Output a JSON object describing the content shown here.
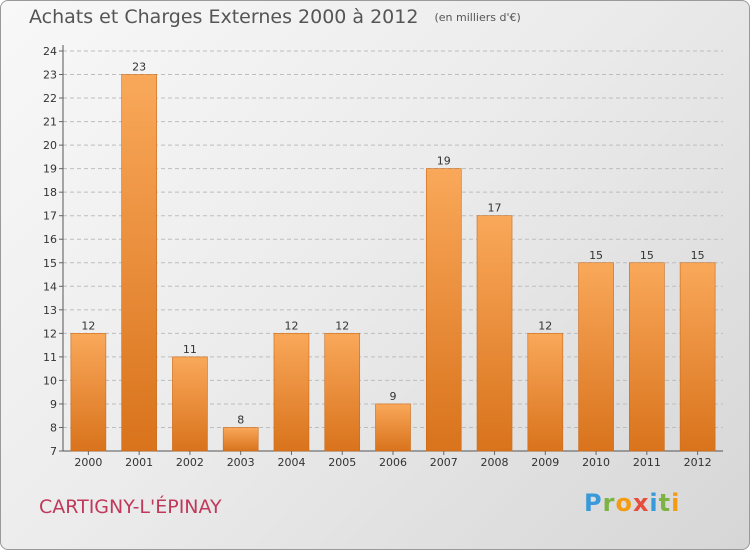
{
  "chart_data": {
    "type": "bar",
    "title": "Achats et Charges Externes 2000 à 2012",
    "subtitle": "(en milliers d'€)",
    "categories": [
      "2000",
      "2001",
      "2002",
      "2003",
      "2004",
      "2005",
      "2006",
      "2007",
      "2008",
      "2009",
      "2010",
      "2011",
      "2012"
    ],
    "values": [
      12,
      23,
      11,
      8,
      12,
      12,
      9,
      19,
      17,
      12,
      15,
      15,
      15
    ],
    "ylim": [
      7,
      24
    ],
    "yticks": [
      7,
      8,
      9,
      10,
      11,
      12,
      13,
      14,
      15,
      16,
      17,
      18,
      19,
      20,
      21,
      22,
      23,
      24
    ],
    "xlabel": "",
    "ylabel": "",
    "grid": true
  },
  "footer": {
    "city": "CARTIGNY-L'ÉPINAY",
    "logo": "Proxiti"
  },
  "colors": {
    "bar_light": "#f9a85a",
    "bar_dark": "#d9731c",
    "city": "#c0395a"
  }
}
